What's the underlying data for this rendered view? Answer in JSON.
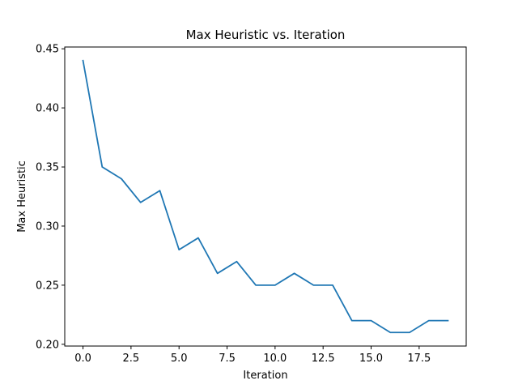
{
  "chart_data": {
    "type": "line",
    "title": "Max Heuristic vs. Iteration",
    "xlabel": "Iteration",
    "ylabel": "Max Heuristic",
    "xlim": [
      -0.95,
      19.95
    ],
    "ylim": [
      0.1985,
      0.4515
    ],
    "x_ticks": [
      0.0,
      2.5,
      5.0,
      7.5,
      10.0,
      12.5,
      15.0,
      17.5
    ],
    "x_tick_labels": [
      "0.0",
      "2.5",
      "5.0",
      "7.5",
      "10.0",
      "12.5",
      "15.0",
      "17.5"
    ],
    "y_ticks": [
      0.2,
      0.25,
      0.3,
      0.35,
      0.4,
      0.45
    ],
    "y_tick_labels": [
      "0.20",
      "0.25",
      "0.30",
      "0.35",
      "0.40",
      "0.45"
    ],
    "grid": false,
    "series": [
      {
        "name": "Max Heuristic",
        "color": "#1f77b4",
        "x": [
          0,
          1,
          2,
          3,
          4,
          5,
          6,
          7,
          8,
          9,
          10,
          11,
          12,
          13,
          14,
          15,
          16,
          17,
          18,
          19
        ],
        "values": [
          0.44,
          0.35,
          0.34,
          0.32,
          0.33,
          0.28,
          0.29,
          0.26,
          0.27,
          0.25,
          0.25,
          0.26,
          0.25,
          0.25,
          0.22,
          0.22,
          0.21,
          0.21,
          0.22,
          0.22
        ]
      }
    ]
  }
}
